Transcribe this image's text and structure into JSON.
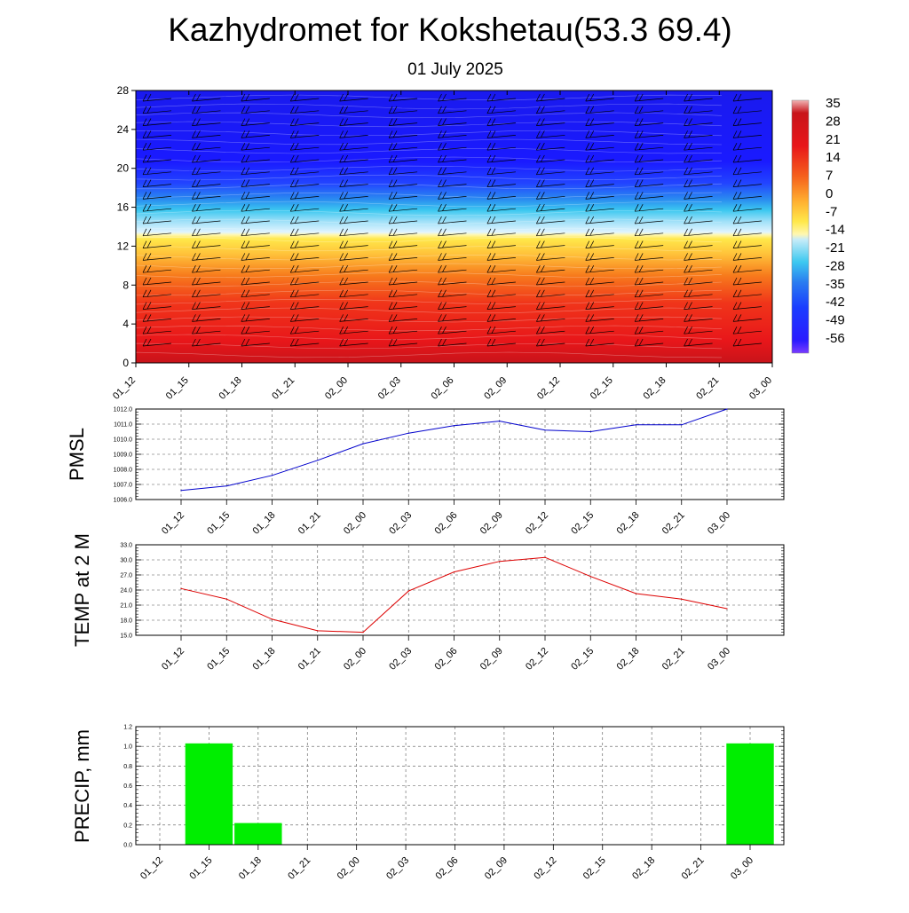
{
  "title": "Kazhydromet for Kokshetau(53.3 69.4)",
  "subtitle": "01 July 2025",
  "cross_section": {
    "y_ticks": [
      "0",
      "4",
      "8",
      "12",
      "16",
      "20",
      "24",
      "28"
    ],
    "x_ticks": [
      "01_12",
      "01_15",
      "01_18",
      "01_21",
      "02_00",
      "02_03",
      "02_06",
      "02_09",
      "02_12",
      "02_15",
      "02_18",
      "02_21",
      "03_00"
    ],
    "colorbar_labels": [
      "35",
      "28",
      "21",
      "14",
      "7",
      "0",
      "-7",
      "-14",
      "-21",
      "-28",
      "-35",
      "-42",
      "-49",
      "-56"
    ],
    "colors": {
      "warm": "#e8161a",
      "yellow": "#ffe84a",
      "freezing": "#fff7b0",
      "cyan": "#3cc8f0",
      "blue": "#1a1aff",
      "purple": "#7a3cff",
      "top": "#f0b4b4"
    }
  },
  "chart_data": [
    {
      "type": "line",
      "ylabel": "PMSL",
      "ylim": [
        1006.0,
        1012.0
      ],
      "y_ticks": [
        "1006.0",
        "1007.0",
        "1008.0",
        "1009.0",
        "1010.0",
        "1011.0",
        "1012.0"
      ],
      "categories": [
        "01_12",
        "01_15",
        "01_18",
        "01_21",
        "02_00",
        "02_03",
        "02_06",
        "02_09",
        "02_12",
        "02_15",
        "02_18",
        "02_21",
        "03_00"
      ],
      "values": [
        1006.6,
        1006.9,
        1007.6,
        1008.6,
        1009.7,
        1010.4,
        1010.9,
        1011.2,
        1010.6,
        1010.5,
        1010.95,
        1010.95,
        1012.0
      ],
      "line_color": "#0000cc",
      "grid": true
    },
    {
      "type": "line",
      "ylabel": "TEMP at 2 M",
      "ylim": [
        15.0,
        33.0
      ],
      "y_ticks": [
        "15.0",
        "18.0",
        "21.0",
        "24.0",
        "27.0",
        "30.0",
        "33.0"
      ],
      "categories": [
        "01_12",
        "01_15",
        "01_18",
        "01_21",
        "02_00",
        "02_03",
        "02_06",
        "02_09",
        "02_12",
        "02_15",
        "02_18",
        "02_21",
        "03_00"
      ],
      "values": [
        24.3,
        22.2,
        18.2,
        15.9,
        15.6,
        23.8,
        27.6,
        29.7,
        30.5,
        26.7,
        23.3,
        22.2,
        20.3
      ],
      "line_color": "#dd0000",
      "grid": true
    },
    {
      "type": "bar",
      "ylabel": "PRECIP, mm",
      "ylim": [
        0.0,
        1.2
      ],
      "y_ticks": [
        "0.0",
        "0.2",
        "0.4",
        "0.6",
        "0.8",
        "1.0",
        "1.2"
      ],
      "categories": [
        "01_12",
        "01_15",
        "01_18",
        "01_21",
        "02_00",
        "02_03",
        "02_06",
        "02_09",
        "02_12",
        "02_15",
        "02_18",
        "02_21",
        "03_00"
      ],
      "values": [
        0.0,
        1.03,
        0.22,
        0.0,
        0.0,
        0.0,
        0.0,
        0.0,
        0.0,
        0.0,
        0.0,
        0.0,
        1.03
      ],
      "bar_color": "#00ee00",
      "grid": true
    }
  ]
}
